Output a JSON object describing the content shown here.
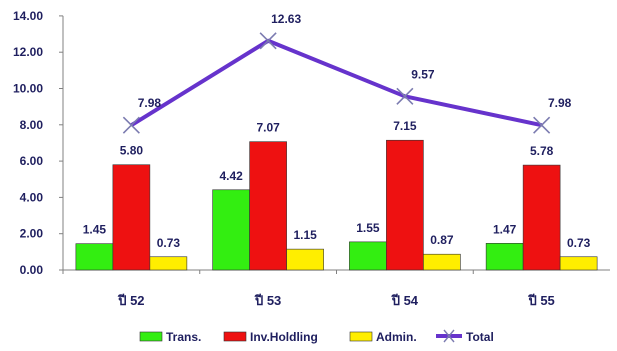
{
  "chart_data": {
    "type": "bar",
    "categories": [
      "ปี 52",
      "ปี 53",
      "ปี 54",
      "ปี 55"
    ],
    "series": [
      {
        "name": "Trans.",
        "type": "bar",
        "color": "#33ee11",
        "values": [
          1.45,
          4.42,
          1.55,
          1.47
        ]
      },
      {
        "name": "Inv.Holdling",
        "type": "bar",
        "color": "#ee1111",
        "values": [
          5.8,
          7.07,
          7.15,
          5.78
        ]
      },
      {
        "name": "Admin.",
        "type": "bar",
        "color": "#ffee00",
        "values": [
          0.73,
          1.15,
          0.87,
          0.73
        ]
      },
      {
        "name": "Total",
        "type": "line",
        "color": "#6633cc",
        "values": [
          7.98,
          12.63,
          9.57,
          7.98
        ]
      }
    ],
    "y_ticks": [
      "0.00",
      "2.00",
      "4.00",
      "6.00",
      "8.00",
      "10.00",
      "12.00",
      "14.00"
    ],
    "ylim": [
      0,
      14
    ],
    "grid": false,
    "legend": "bottom",
    "title": "",
    "xlabel": "",
    "ylabel": ""
  }
}
